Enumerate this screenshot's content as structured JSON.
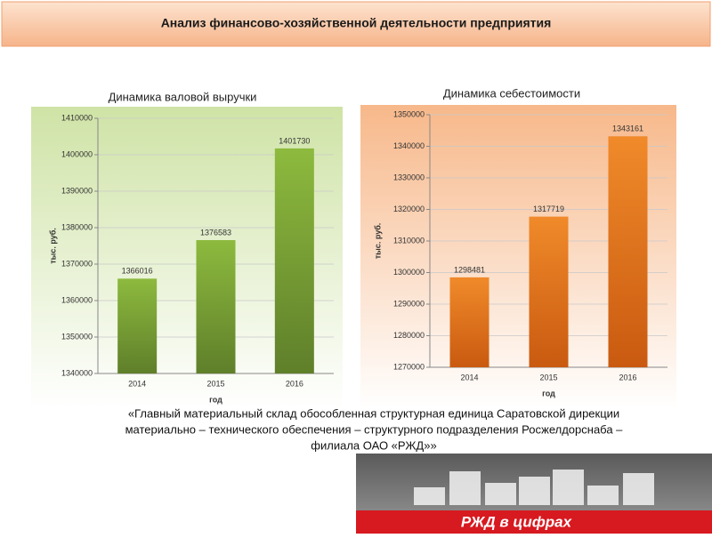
{
  "header": {
    "title": "Анализ финансово-хозяйственной деятельности предприятия"
  },
  "chart_data": [
    {
      "type": "bar",
      "title": "Динамика валовой выручки",
      "ylabel": "тыс. руб.",
      "xlabel": "год",
      "categories": [
        "2014",
        "2015",
        "2016"
      ],
      "values": [
        1366016,
        1376583,
        1401730
      ],
      "color": "#7ea33a",
      "ylim": [
        1340000,
        1410000
      ],
      "yticks": [
        1340000,
        1350000,
        1360000,
        1370000,
        1380000,
        1390000,
        1400000,
        1410000
      ],
      "grid": true
    },
    {
      "type": "bar",
      "title": "Динамика себестоимости",
      "ylabel": "тыс. руб.",
      "xlabel": "год",
      "categories": [
        "2014",
        "2015",
        "2016"
      ],
      "values": [
        1298481,
        1317719,
        1343161
      ],
      "color": "#e8781e",
      "ylim": [
        1270000,
        1350000
      ],
      "yticks": [
        1270000,
        1280000,
        1290000,
        1300000,
        1310000,
        1320000,
        1330000,
        1340000,
        1350000
      ],
      "grid": true
    }
  ],
  "caption": [
    "«Главный материальный склад обособленная структурная единица Саратовской дирекции",
    "материально – технического обеспечения – структурного подразделения Росжелдорснаба –",
    "филиала ОАО «РЖД»»"
  ],
  "banner": {
    "title": "РЖД в цифрах"
  }
}
